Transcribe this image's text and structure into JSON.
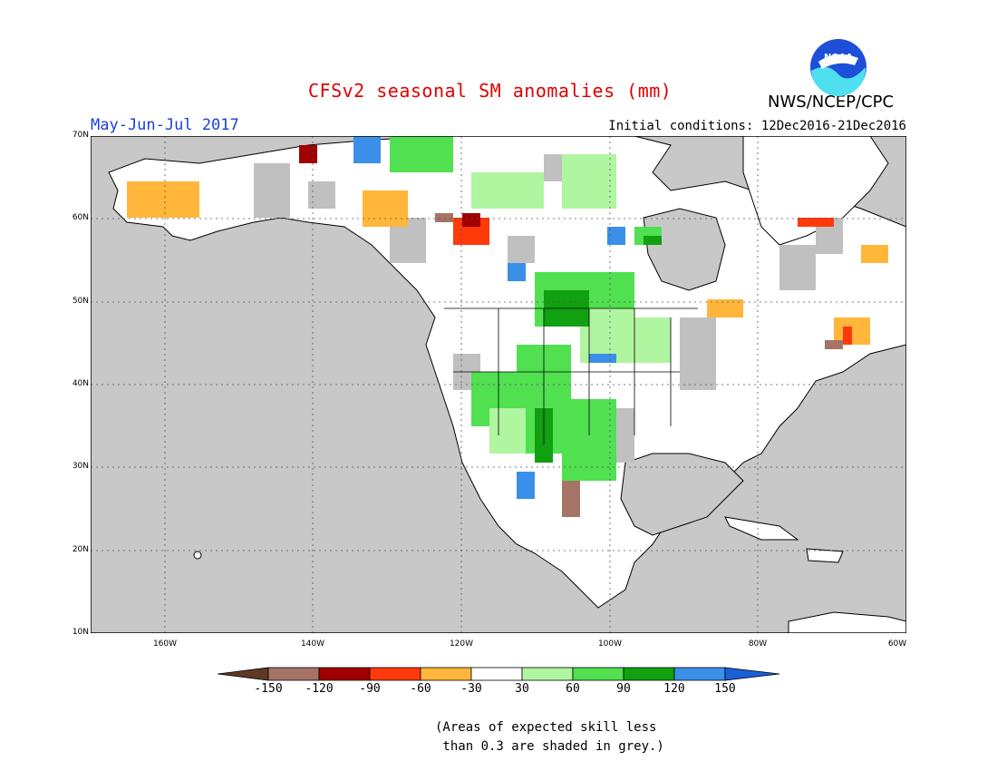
{
  "title": "CFSv2 seasonal SM anomalies (mm)",
  "period": "May-Jun-Jul 2017",
  "initial_conditions": "Initial conditions: 12Dec2016-21Dec2016",
  "agency": "NWS/NCEP/CPC",
  "logo_text": "NOAA",
  "map": {
    "lat_labels": [
      "70N",
      "60N",
      "50N",
      "40N",
      "30N",
      "20N",
      "10N"
    ],
    "lon_labels": [
      "160W",
      "140W",
      "120W",
      "100W",
      "80W",
      "60W"
    ],
    "lat_range": [
      10,
      70
    ],
    "lon_range": [
      -170,
      -60
    ],
    "grid": true,
    "colors": {
      "ocean": "#c8c8c8",
      "land": "#ffffff",
      "low_skill": "#c0c0c0",
      "coast": "#000000"
    }
  },
  "colorbar": {
    "labels": [
      "-150",
      "-120",
      "-90",
      "-60",
      "-30",
      "30",
      "60",
      "90",
      "120",
      "150"
    ],
    "colors": [
      "#5c3a26",
      "#a57466",
      "#a00000",
      "#ff3a0a",
      "#ffb63a",
      "#ffffff",
      "#b0f5a0",
      "#50e050",
      "#10a010",
      "#3a8fe8",
      "#1a5fd8"
    ]
  },
  "note": "(Areas of expected skill less\n than 0.3 are shaded in grey.)"
}
